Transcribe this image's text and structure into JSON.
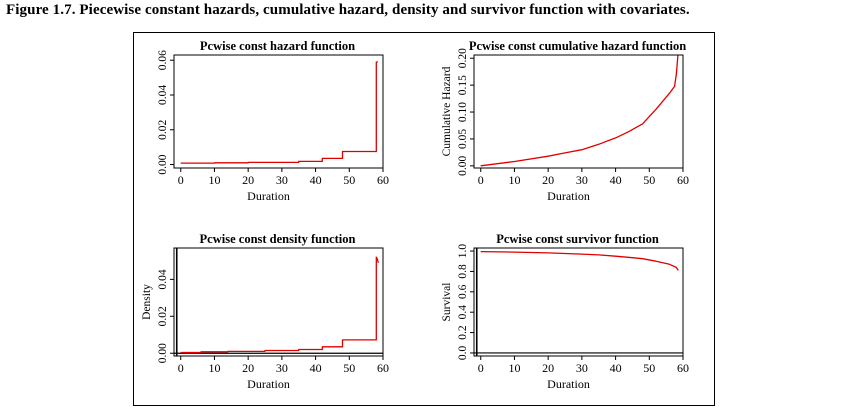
{
  "figure": {
    "title": "Figure 1.7. Piecewise constant hazards, cumulative hazard, density and survivor function with covariates."
  },
  "colors": {
    "line": "#e00000",
    "axis": "#000000"
  },
  "chart_data": [
    {
      "type": "line",
      "title": "Pcwise const hazard function",
      "xlabel": "Duration",
      "ylabel": "",
      "xlim": [
        -2,
        60
      ],
      "ylim": [
        -0.002,
        0.063
      ],
      "xticks": [
        0,
        10,
        20,
        30,
        40,
        50,
        60
      ],
      "yticks": [
        0.0,
        0.02,
        0.04,
        0.06
      ],
      "ytick_labels": [
        "0.00",
        "0.02",
        "0.04",
        "0.06"
      ],
      "y_zero_line": false,
      "series": [
        {
          "x": [
            0,
            10,
            10,
            20,
            20,
            35,
            35,
            42,
            42,
            48,
            48,
            58,
            58,
            58.5
          ],
          "y": [
            0.0008,
            0.0008,
            0.001,
            0.001,
            0.0012,
            0.0012,
            0.0018,
            0.0018,
            0.0035,
            0.0035,
            0.0075,
            0.0075,
            0.059,
            0.059
          ]
        }
      ]
    },
    {
      "type": "line",
      "title": "Pcwise const cumulative hazard function",
      "xlabel": "Duration",
      "ylabel": "Cumulative Hazard",
      "xlim": [
        -2,
        60
      ],
      "ylim": [
        -0.004,
        0.206
      ],
      "xticks": [
        0,
        10,
        20,
        30,
        40,
        50,
        60
      ],
      "yticks": [
        0.0,
        0.05,
        0.1,
        0.15,
        0.2
      ],
      "ytick_labels": [
        "0.00",
        "0.05",
        "0.10",
        "0.15",
        "0.20"
      ],
      "y_zero_line": false,
      "series": [
        {
          "x": [
            0,
            10,
            20,
            25,
            30,
            35,
            40,
            44,
            48,
            52,
            56,
            57.5,
            58,
            58.5
          ],
          "y": [
            0.0,
            0.008,
            0.018,
            0.024,
            0.03,
            0.04,
            0.052,
            0.064,
            0.078,
            0.105,
            0.135,
            0.148,
            0.17,
            0.205
          ]
        }
      ]
    },
    {
      "type": "line",
      "title": "Pcwise const density function",
      "xlabel": "Duration",
      "ylabel": "Density",
      "xlim": [
        -2,
        60
      ],
      "ylim": [
        -0.0015,
        0.057
      ],
      "xticks": [
        0,
        10,
        20,
        30,
        40,
        50,
        60
      ],
      "yticks": [
        0.0,
        0.02,
        0.04
      ],
      "ytick_labels": [
        "0.00",
        "0.02",
        "0.04"
      ],
      "y_zero_line": true,
      "series": [
        {
          "x": [
            0,
            6,
            6,
            14,
            14,
            25,
            25,
            35,
            35,
            42,
            42,
            48,
            48,
            58,
            58,
            58.3,
            58.6
          ],
          "y": [
            0.0004,
            0.0004,
            0.0008,
            0.0008,
            0.001,
            0.001,
            0.0015,
            0.0015,
            0.002,
            0.002,
            0.0035,
            0.0035,
            0.0072,
            0.0072,
            0.052,
            0.051,
            0.049
          ]
        }
      ]
    },
    {
      "type": "line",
      "title": "Pcwise const survivor function",
      "xlabel": "Duration",
      "ylabel": "Survival",
      "xlim": [
        -2,
        60
      ],
      "ylim": [
        -0.03,
        1.03
      ],
      "xticks": [
        0,
        10,
        20,
        30,
        40,
        50,
        60
      ],
      "yticks": [
        0.0,
        0.2,
        0.4,
        0.6,
        0.8,
        1.0
      ],
      "ytick_labels": [
        "0.0",
        "0.2",
        "0.4",
        "0.6",
        "0.8",
        "1.0"
      ],
      "y_zero_line": true,
      "series": [
        {
          "x": [
            0,
            10,
            20,
            30,
            35,
            40,
            45,
            48,
            52,
            56,
            58,
            58.6
          ],
          "y": [
            0.995,
            0.99,
            0.982,
            0.97,
            0.962,
            0.95,
            0.935,
            0.925,
            0.9,
            0.87,
            0.84,
            0.81
          ]
        }
      ]
    }
  ]
}
